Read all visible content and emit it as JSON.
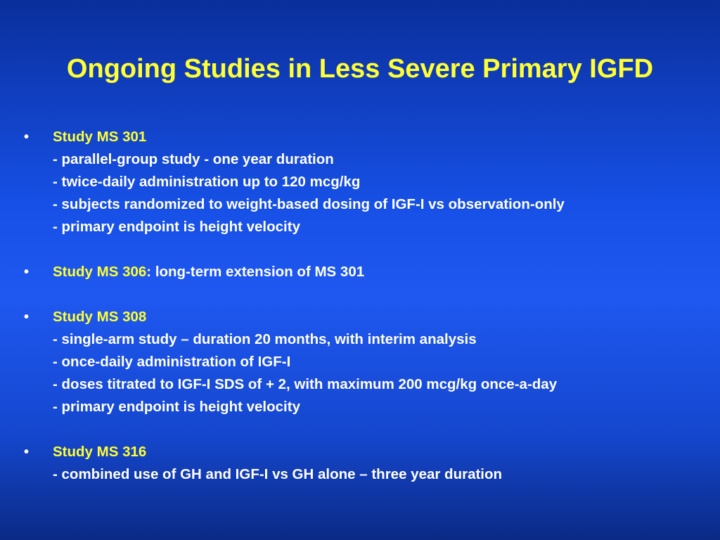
{
  "slide": {
    "title": "Ongoing Studies in Less Severe Primary IGFD",
    "bullet_symbol": "•",
    "bullets": [
      {
        "heading": "Study MS 301",
        "suffix": "",
        "lines": [
          "- parallel-group study - one year duration",
          "- twice-daily administration up to 120 mcg/kg",
          "- subjects randomized to weight-based dosing of IGF-I vs observation-only",
          "- primary endpoint is height velocity"
        ]
      },
      {
        "heading": "Study MS 306",
        "suffix": ": long-term extension of MS 301",
        "lines": []
      },
      {
        "heading": "Study MS 308",
        "suffix": "",
        "lines": [
          "- single-arm study – duration 20 months, with interim analysis",
          "- once-daily administration of IGF-I",
          "- doses titrated to IGF-I SDS of + 2, with maximum 200 mcg/kg once-a-day",
          "- primary endpoint is height velocity"
        ]
      },
      {
        "heading": "Study MS 316",
        "suffix": "",
        "lines": [
          "- combined use of GH and IGF-I vs GH alone – three year duration"
        ]
      }
    ],
    "colors": {
      "title": "#ffff33",
      "heading": "#ffff33",
      "body": "#ffffff",
      "background": "#1f58f0"
    }
  }
}
